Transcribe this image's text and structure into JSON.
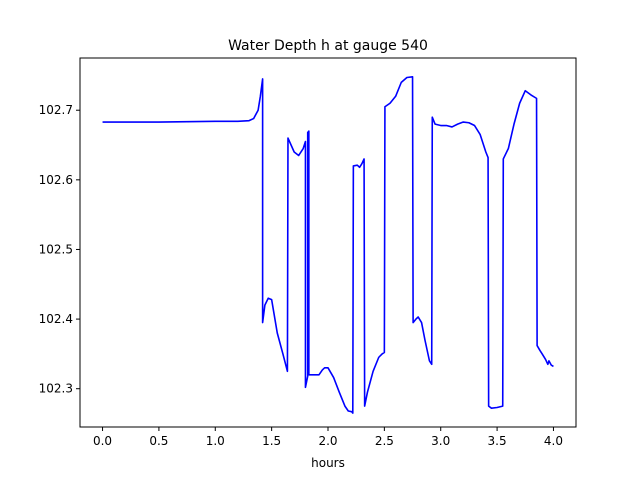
{
  "chart_data": {
    "type": "line",
    "title": "Water Depth h at gauge 540",
    "xlabel": "hours",
    "ylabel": "",
    "xlim": [
      -0.2,
      4.2
    ],
    "ylim": [
      102.245,
      102.775
    ],
    "x_ticks": [
      0.0,
      0.5,
      1.0,
      1.5,
      2.0,
      2.5,
      3.0,
      3.5,
      4.0
    ],
    "x_tick_labels": [
      "0.0",
      "0.5",
      "1.0",
      "1.5",
      "2.0",
      "2.5",
      "3.0",
      "3.5",
      "4.0"
    ],
    "y_ticks": [
      102.3,
      102.4,
      102.5,
      102.6,
      102.7
    ],
    "y_tick_labels": [
      "102.3",
      "102.4",
      "102.5",
      "102.6",
      "102.7"
    ],
    "grid": false,
    "series": [
      {
        "color": "#0000ff",
        "points": [
          [
            0.0,
            102.683
          ],
          [
            0.5,
            102.683
          ],
          [
            1.0,
            102.684
          ],
          [
            1.2,
            102.684
          ],
          [
            1.3,
            102.685
          ],
          [
            1.34,
            102.688
          ],
          [
            1.38,
            102.7
          ],
          [
            1.4,
            102.72
          ],
          [
            1.42,
            102.745
          ],
          [
            1.42,
            102.395
          ],
          [
            1.44,
            102.42
          ],
          [
            1.47,
            102.43
          ],
          [
            1.5,
            102.428
          ],
          [
            1.55,
            102.38
          ],
          [
            1.6,
            102.35
          ],
          [
            1.64,
            102.325
          ],
          [
            1.645,
            102.66
          ],
          [
            1.7,
            102.64
          ],
          [
            1.74,
            102.635
          ],
          [
            1.78,
            102.645
          ],
          [
            1.8,
            102.655
          ],
          [
            1.8,
            102.302
          ],
          [
            1.82,
            102.318
          ],
          [
            1.82,
            102.668
          ],
          [
            1.83,
            102.67
          ],
          [
            1.83,
            102.32
          ],
          [
            1.87,
            102.32
          ],
          [
            1.92,
            102.32
          ],
          [
            1.95,
            102.327
          ],
          [
            1.97,
            102.33
          ],
          [
            2.0,
            102.33
          ],
          [
            2.05,
            102.316
          ],
          [
            2.1,
            102.295
          ],
          [
            2.15,
            102.275
          ],
          [
            2.18,
            102.268
          ],
          [
            2.21,
            102.267
          ],
          [
            2.22,
            102.265
          ],
          [
            2.225,
            102.62
          ],
          [
            2.26,
            102.621
          ],
          [
            2.28,
            102.618
          ],
          [
            2.3,
            102.623
          ],
          [
            2.32,
            102.63
          ],
          [
            2.325,
            102.275
          ],
          [
            2.35,
            102.295
          ],
          [
            2.4,
            102.325
          ],
          [
            2.45,
            102.345
          ],
          [
            2.48,
            102.35
          ],
          [
            2.5,
            102.352
          ],
          [
            2.505,
            102.705
          ],
          [
            2.55,
            102.71
          ],
          [
            2.6,
            102.72
          ],
          [
            2.65,
            102.74
          ],
          [
            2.7,
            102.747
          ],
          [
            2.75,
            102.748
          ],
          [
            2.755,
            102.395
          ],
          [
            2.78,
            102.4
          ],
          [
            2.8,
            102.403
          ],
          [
            2.83,
            102.395
          ],
          [
            2.86,
            102.37
          ],
          [
            2.9,
            102.34
          ],
          [
            2.92,
            102.335
          ],
          [
            2.925,
            102.69
          ],
          [
            2.95,
            102.68
          ],
          [
            3.0,
            102.678
          ],
          [
            3.05,
            102.678
          ],
          [
            3.1,
            102.676
          ],
          [
            3.15,
            102.68
          ],
          [
            3.2,
            102.683
          ],
          [
            3.25,
            102.682
          ],
          [
            3.3,
            102.678
          ],
          [
            3.35,
            102.665
          ],
          [
            3.4,
            102.64
          ],
          [
            3.42,
            102.632
          ],
          [
            3.425,
            102.275
          ],
          [
            3.45,
            102.272
          ],
          [
            3.5,
            102.273
          ],
          [
            3.55,
            102.275
          ],
          [
            3.555,
            102.63
          ],
          [
            3.6,
            102.645
          ],
          [
            3.65,
            102.68
          ],
          [
            3.7,
            102.71
          ],
          [
            3.75,
            102.728
          ],
          [
            3.8,
            102.722
          ],
          [
            3.85,
            102.717
          ],
          [
            3.855,
            102.362
          ],
          [
            3.88,
            102.355
          ],
          [
            3.9,
            102.35
          ],
          [
            3.93,
            102.342
          ],
          [
            3.95,
            102.335
          ],
          [
            3.96,
            102.34
          ],
          [
            3.98,
            102.334
          ],
          [
            4.0,
            102.332
          ]
        ]
      }
    ]
  }
}
